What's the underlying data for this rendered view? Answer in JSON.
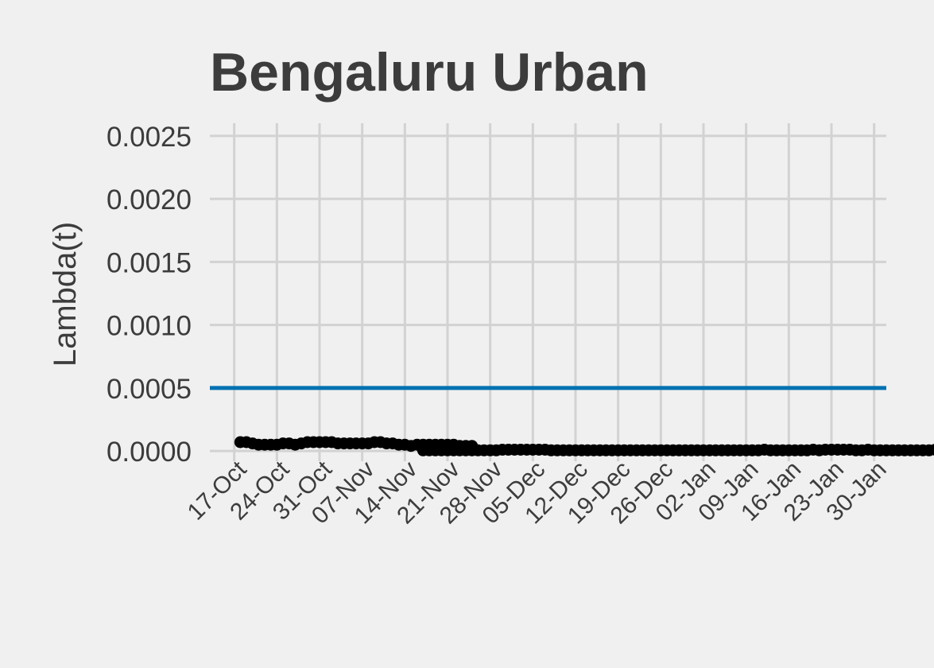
{
  "chart_data": {
    "type": "line",
    "title": "Bengaluru Urban",
    "xlabel": "",
    "ylabel": "Lambda(t)",
    "ylim": [
      -5e-05,
      0.0026
    ],
    "xlim": [
      "2020-10-13",
      "2021-02-01"
    ],
    "y_ticks": [
      0.0,
      0.0005,
      0.001,
      0.0015,
      0.002,
      0.0025
    ],
    "y_tick_labels": [
      "0.0000",
      "0.0005",
      "0.0010",
      "0.0015",
      "0.0020",
      "0.0025"
    ],
    "x_ticks": [
      "2020-10-17",
      "2020-10-24",
      "2020-10-31",
      "2020-11-07",
      "2020-11-14",
      "2020-11-21",
      "2020-11-28",
      "2020-12-05",
      "2020-12-12",
      "2020-12-19",
      "2020-12-26",
      "2021-01-02",
      "2021-01-09",
      "2021-01-16",
      "2021-01-23",
      "2021-01-30"
    ],
    "x_tick_labels": [
      "17-Oct",
      "24-Oct",
      "31-Oct",
      "07-Nov",
      "14-Nov",
      "21-Nov",
      "28-Nov",
      "05-Dec",
      "12-Dec",
      "19-Dec",
      "26-Dec",
      "02-Jan",
      "09-Jan",
      "16-Jan",
      "23-Jan",
      "30-Jan"
    ],
    "grid": true,
    "reference_line": {
      "y": 0.0005,
      "color": "#0072b2"
    },
    "series": [
      {
        "color": "#000000",
        "segments": [
          {
            "start_date": "2020-10-18",
            "values": [
              7e-05,
              7e-05,
              6e-05,
              5e-05,
              5e-05,
              5e-05,
              5e-05,
              6e-05,
              6e-05,
              5e-05,
              6e-05,
              7e-05,
              7e-05,
              7e-05,
              7e-05,
              7e-05,
              6e-05,
              6e-05,
              6e-05,
              6e-05,
              6e-05,
              6e-05,
              7e-05,
              7e-05,
              6e-05,
              6e-05,
              5e-05,
              5e-05,
              4e-05,
              5e-05,
              5e-05,
              5e-05,
              5e-05,
              5e-05,
              5e-05,
              5e-05,
              4e-05,
              4e-05,
              4e-05
            ]
          },
          {
            "start_date": "2020-11-17",
            "values": [
              5e-06,
              5e-06,
              5e-06,
              5e-06,
              5e-06,
              5e-06,
              5e-06,
              5e-06,
              5e-06,
              5e-06,
              5e-06,
              5e-06,
              5e-06,
              1e-05,
              1e-05,
              1e-05,
              1e-05,
              1e-05,
              1e-05,
              1e-05,
              1e-05,
              5e-06,
              5e-06,
              5e-06,
              5e-06,
              5e-06,
              5e-06,
              5e-06,
              5e-06,
              5e-06,
              5e-06,
              5e-06,
              5e-06,
              5e-06,
              5e-06,
              5e-06,
              5e-06,
              5e-06,
              5e-06,
              5e-06,
              5e-06,
              5e-06,
              5e-06,
              5e-06,
              5e-06,
              5e-06,
              5e-06,
              5e-06,
              5e-06,
              5e-06,
              5e-06,
              5e-06,
              5e-06,
              5e-06,
              5e-06,
              5e-06,
              1e-05,
              5e-06,
              5e-06,
              5e-06,
              5e-06,
              5e-06,
              5e-06,
              5e-06,
              1e-05,
              5e-06,
              1e-05,
              1e-05,
              1e-05,
              1e-05,
              1e-05,
              5e-06,
              5e-06,
              1e-05,
              5e-06,
              5e-06,
              5e-06,
              5e-06,
              5e-06,
              5e-06,
              5e-06,
              5e-06,
              5e-06,
              5e-06,
              1e-05,
              1e-05,
              1e-05,
              1e-05,
              1e-05,
              1e-05,
              1e-05,
              1e-05,
              1e-05,
              1e-05,
              1e-05,
              1e-05,
              1e-05,
              1e-05,
              1e-05,
              5e-06,
              5e-06,
              5e-06,
              5e-06,
              5e-06,
              5e-06
            ]
          }
        ]
      }
    ]
  }
}
